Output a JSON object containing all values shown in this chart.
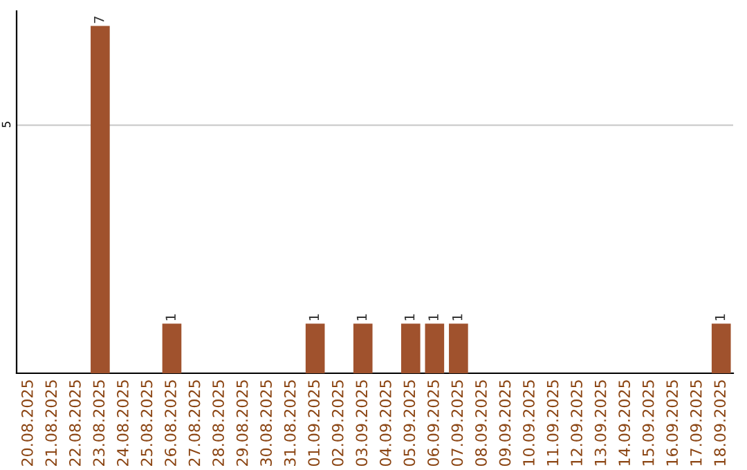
{
  "chart_data": {
    "type": "bar",
    "categories": [
      "20.08.2025",
      "21.08.2025",
      "22.08.2025",
      "23.08.2025",
      "24.08.2025",
      "25.08.2025",
      "26.08.2025",
      "27.08.2025",
      "28.08.2025",
      "29.08.2025",
      "30.08.2025",
      "31.08.2025",
      "01.09.2025",
      "02.09.2025",
      "03.09.2025",
      "04.09.2025",
      "05.09.2025",
      "06.09.2025",
      "07.09.2025",
      "08.09.2025",
      "09.09.2025",
      "10.09.2025",
      "11.09.2025",
      "12.09.2025",
      "13.09.2025",
      "14.09.2025",
      "15.09.2025",
      "16.09.2025",
      "17.09.2025",
      "18.09.2025"
    ],
    "values": [
      0,
      0,
      0,
      7,
      0,
      0,
      1,
      0,
      0,
      0,
      0,
      0,
      1,
      0,
      1,
      0,
      1,
      1,
      1,
      0,
      0,
      0,
      0,
      0,
      0,
      0,
      0,
      0,
      0,
      1
    ],
    "value_labels": [
      null,
      null,
      null,
      "7",
      null,
      null,
      "1",
      null,
      null,
      null,
      null,
      null,
      "1",
      null,
      "1",
      null,
      "1",
      "1",
      "1",
      null,
      null,
      null,
      null,
      null,
      null,
      null,
      null,
      null,
      null,
      "1"
    ],
    "color": "#a0522d",
    "ylim": [
      0,
      7.3
    ],
    "yticks": [
      5
    ],
    "grid": "y"
  }
}
